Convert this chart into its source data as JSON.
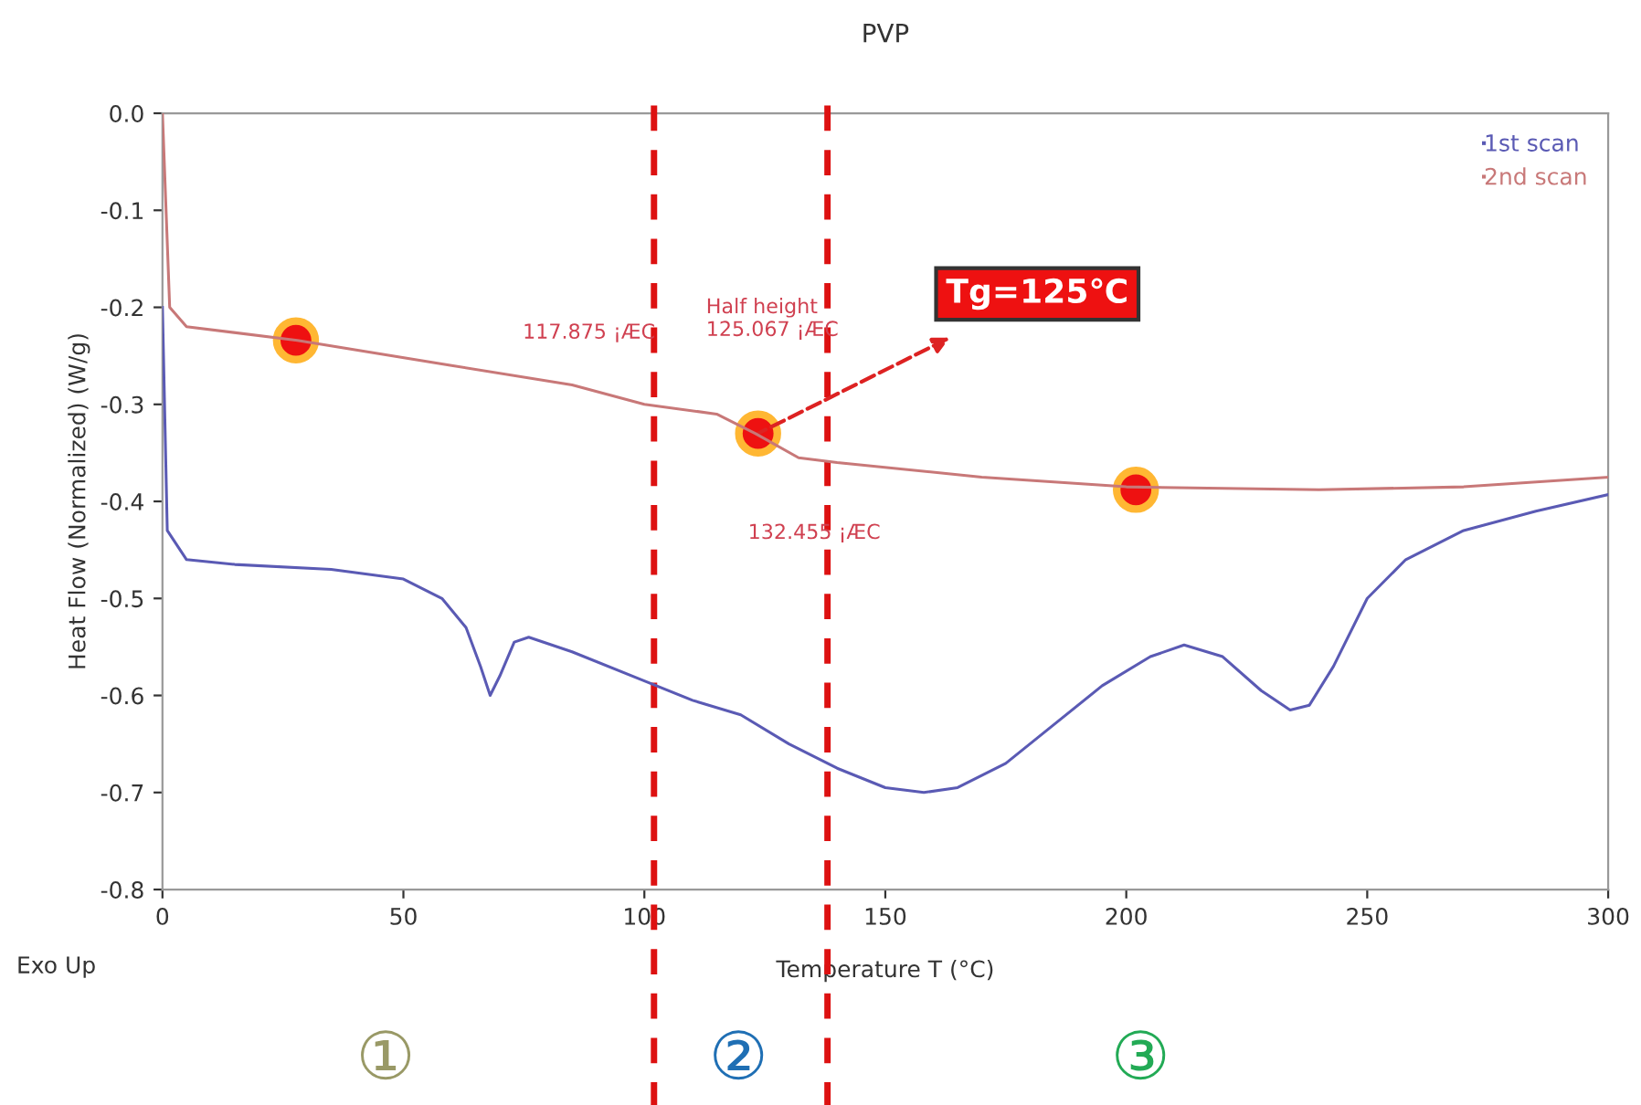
{
  "chart_data": {
    "type": "line",
    "title": "PVP",
    "xlabel": "Temperature T (°C)",
    "ylabel": "Heat Flow (Normalized) (W/g)",
    "xlim": [
      0,
      300
    ],
    "xticks": [
      0,
      50,
      100,
      150,
      200,
      250,
      300
    ],
    "ylim": [
      -0.8,
      0.0
    ],
    "yticks": [
      {
        "value": 0.0,
        "label": "0.0"
      },
      {
        "value": -0.1,
        "label": "-0.1"
      },
      {
        "value": -0.2,
        "label": "-0.2"
      },
      {
        "value": -0.3,
        "label": "-0.3"
      },
      {
        "value": -0.4,
        "label": "-0.4"
      },
      {
        "value": -0.5,
        "label": "-0.5"
      },
      {
        "value": -0.6,
        "label": "-0.6"
      },
      {
        "value": -0.7,
        "label": "-0.7"
      },
      {
        "value": -0.8,
        "label": "-0.8"
      }
    ],
    "grid": false,
    "legend": "top right",
    "series": [
      {
        "name": "1st scan",
        "color": "#5a5ab4",
        "x": [
          0,
          1,
          5,
          15,
          35,
          50,
          58,
          63,
          66,
          68,
          70,
          73,
          76,
          85,
          100,
          110,
          120,
          130,
          140,
          150,
          158,
          165,
          175,
          185,
          195,
          205,
          212,
          220,
          228,
          234,
          238,
          243,
          250,
          258,
          270,
          285,
          300
        ],
        "values": [
          -0.2,
          -0.43,
          -0.46,
          -0.465,
          -0.47,
          -0.48,
          -0.5,
          -0.53,
          -0.57,
          -0.6,
          -0.58,
          -0.545,
          -0.54,
          -0.555,
          -0.585,
          -0.605,
          -0.62,
          -0.65,
          -0.675,
          -0.695,
          -0.7,
          -0.695,
          -0.67,
          -0.63,
          -0.59,
          -0.56,
          -0.548,
          -0.56,
          -0.595,
          -0.615,
          -0.61,
          -0.57,
          -0.5,
          -0.46,
          -0.43,
          -0.41,
          -0.393
        ]
      },
      {
        "name": "2nd scan",
        "color": "#c87878",
        "x": [
          0,
          1.5,
          5,
          28,
          60,
          85,
          100,
          115,
          123,
          132,
          140,
          170,
          200,
          240,
          270,
          300
        ],
        "values": [
          0.0,
          -0.2,
          -0.22,
          -0.234,
          -0.26,
          -0.28,
          -0.3,
          -0.31,
          -0.33,
          -0.355,
          -0.36,
          -0.375,
          -0.385,
          -0.388,
          -0.385,
          -0.375
        ]
      },
      {
        "type": "scatter",
        "color": "#ee1111",
        "x": [
          27.7,
          123.6,
          202
        ],
        "values": [
          -0.234,
          -0.33,
          -0.388
        ]
      }
    ],
    "ref_lines": [
      {
        "axis": "x",
        "value": 102,
        "color": "#dd1111",
        "line_style": "dashed"
      },
      {
        "axis": "x",
        "value": 138,
        "color": "#dd1111",
        "line_style": "dashed"
      }
    ],
    "annotations": [
      "117.875 ¡ÆC",
      "Half height\n125.067 ¡ÆC",
      "132.455 ¡ÆC",
      {
        "text": "Tg=125℃",
        "x": 123.6,
        "y": -0.33
      },
      "Exo Up",
      "①",
      "②",
      "③"
    ]
  }
}
